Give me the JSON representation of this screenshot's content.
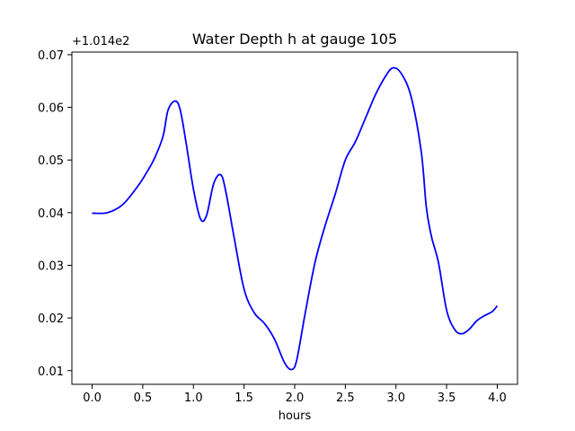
{
  "chart_data": {
    "type": "line",
    "title": "Water Depth h at gauge 105",
    "xlabel": "hours",
    "ylabel": "",
    "y_offset_label": "+1.014e2",
    "xlim": [
      -0.2,
      4.2
    ],
    "ylim": [
      0.0074,
      0.0705
    ],
    "x_ticks": [
      0.0,
      0.5,
      1.0,
      1.5,
      2.0,
      2.5,
      3.0,
      3.5,
      4.0
    ],
    "x_tick_labels": [
      "0.0",
      "0.5",
      "1.0",
      "1.5",
      "2.0",
      "2.5",
      "3.0",
      "3.5",
      "4.0"
    ],
    "y_ticks": [
      0.01,
      0.02,
      0.03,
      0.04,
      0.05,
      0.06,
      0.07
    ],
    "y_tick_labels": [
      "0.01",
      "0.02",
      "0.03",
      "0.04",
      "0.05",
      "0.06",
      "0.07"
    ],
    "grid": false,
    "series": [
      {
        "color": "#0000ff",
        "x": [
          0.0,
          0.15,
          0.3,
          0.45,
          0.55,
          0.62,
          0.7,
          0.75,
          0.82,
          0.87,
          0.93,
          1.0,
          1.07,
          1.13,
          1.2,
          1.27,
          1.32,
          1.4,
          1.5,
          1.6,
          1.7,
          1.8,
          1.9,
          1.97,
          2.02,
          2.1,
          2.2,
          2.3,
          2.4,
          2.5,
          2.6,
          2.7,
          2.8,
          2.9,
          2.97,
          3.05,
          3.15,
          3.25,
          3.3,
          3.35,
          3.42,
          3.5,
          3.58,
          3.65,
          3.72,
          3.8,
          3.88,
          3.95,
          4.0
        ],
        "y": [
          0.0399,
          0.04,
          0.0415,
          0.045,
          0.048,
          0.0505,
          0.0545,
          0.0595,
          0.0612,
          0.0595,
          0.053,
          0.0445,
          0.0388,
          0.0395,
          0.0455,
          0.0472,
          0.044,
          0.0355,
          0.0255,
          0.021,
          0.019,
          0.016,
          0.0115,
          0.0102,
          0.012,
          0.0205,
          0.0305,
          0.0375,
          0.0435,
          0.05,
          0.0535,
          0.058,
          0.0625,
          0.066,
          0.0675,
          0.0665,
          0.062,
          0.0515,
          0.041,
          0.0355,
          0.0305,
          0.0215,
          0.0178,
          0.017,
          0.0178,
          0.0195,
          0.0205,
          0.0212,
          0.0223
        ]
      }
    ]
  }
}
